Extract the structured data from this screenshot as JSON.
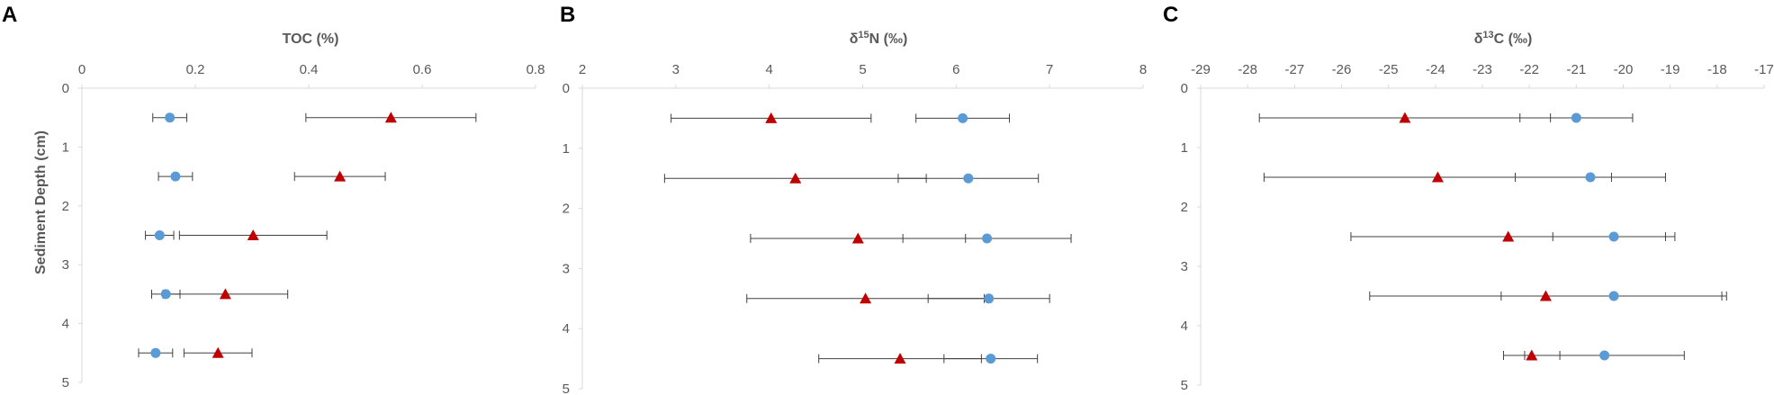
{
  "colors": {
    "series_circle": "#5b9bd5",
    "series_triangle": "#c00000",
    "error_bar": "#404040",
    "axis_text": "#595959"
  },
  "chart_data": [
    {
      "type": "scatter",
      "panel_label": "A",
      "title": "TOC (%)",
      "xlabel": "TOC (%)",
      "ylabel": "Sediment Depth (cm)",
      "x_axis_position": "top",
      "y_reversed": true,
      "xlim": [
        0,
        0.8
      ],
      "ylim": [
        0,
        5
      ],
      "xticks": [
        0,
        0.2,
        0.4,
        0.6,
        0.8
      ],
      "xtick_labels": [
        "0",
        "0.2",
        "0.4",
        "0.6",
        "0.8"
      ],
      "yticks": [
        0,
        1,
        2,
        3,
        4,
        5
      ],
      "ytick_labels": [
        "0",
        "1",
        "2",
        "3",
        "4",
        "5"
      ],
      "grid": false,
      "series": [
        {
          "marker": "circle",
          "color": "#5b9bd5",
          "points": [
            {
              "x": 0.155,
              "y": 0.5,
              "err": 0.03
            },
            {
              "x": 0.165,
              "y": 1.5,
              "err": 0.03
            },
            {
              "x": 0.137,
              "y": 2.5,
              "err": 0.025
            },
            {
              "x": 0.148,
              "y": 3.5,
              "err": 0.025
            },
            {
              "x": 0.13,
              "y": 4.5,
              "err": 0.03
            }
          ]
        },
        {
          "marker": "triangle",
          "color": "#c00000",
          "points": [
            {
              "x": 0.545,
              "y": 0.5,
              "err": 0.15
            },
            {
              "x": 0.455,
              "y": 1.5,
              "err": 0.08
            },
            {
              "x": 0.302,
              "y": 2.5,
              "err": 0.13
            },
            {
              "x": 0.253,
              "y": 3.5,
              "err": 0.11
            },
            {
              "x": 0.24,
              "y": 4.5,
              "err": 0.06
            }
          ]
        }
      ]
    },
    {
      "type": "scatter",
      "panel_label": "B",
      "title": "δ15N (‰)",
      "title_parts": {
        "prefix": "δ",
        "sup": "15",
        "suffix": "N (‰)"
      },
      "x_axis_position": "top",
      "y_reversed": true,
      "xlim": [
        2,
        8
      ],
      "ylim": [
        0,
        5
      ],
      "xticks": [
        2,
        3,
        4,
        5,
        6,
        7,
        8
      ],
      "xtick_labels": [
        "2",
        "3",
        "4",
        "5",
        "6",
        "7",
        "8"
      ],
      "yticks": [
        0,
        1,
        2,
        3,
        4,
        5
      ],
      "ytick_labels": [
        "0",
        "1",
        "2",
        "3",
        "4",
        "5"
      ],
      "grid": false,
      "series": [
        {
          "marker": "circle",
          "color": "#5b9bd5",
          "points": [
            {
              "x": 6.07,
              "y": 0.5,
              "err": 0.5
            },
            {
              "x": 6.13,
              "y": 1.5,
              "err": 0.75
            },
            {
              "x": 6.33,
              "y": 2.5,
              "err": 0.9
            },
            {
              "x": 6.35,
              "y": 3.5,
              "err": 0.65
            },
            {
              "x": 6.37,
              "y": 4.5,
              "err": 0.5
            }
          ]
        },
        {
          "marker": "triangle",
          "color": "#c00000",
          "points": [
            {
              "x": 4.02,
              "y": 0.5,
              "err": 1.07
            },
            {
              "x": 4.28,
              "y": 1.5,
              "err": 1.4
            },
            {
              "x": 4.95,
              "y": 2.5,
              "err": 1.15
            },
            {
              "x": 5.03,
              "y": 3.5,
              "err": 1.27
            },
            {
              "x": 5.4,
              "y": 4.5,
              "err": 0.87
            }
          ]
        }
      ]
    },
    {
      "type": "scatter",
      "panel_label": "C",
      "title": "δ13C (‰)",
      "title_parts": {
        "prefix": "δ",
        "sup": "13",
        "suffix": "C (‰)"
      },
      "x_axis_position": "top",
      "y_reversed": true,
      "xlim": [
        -29,
        -17
      ],
      "ylim": [
        0,
        5
      ],
      "xticks": [
        -29,
        -28,
        -27,
        -26,
        -25,
        -24,
        -23,
        -22,
        -21,
        -20,
        -19,
        -18,
        -17
      ],
      "xtick_labels": [
        "-29",
        "-28",
        "-27",
        "-26",
        "-25",
        "-24",
        "-23",
        "-22",
        "-21",
        "-20",
        "-19",
        "-18",
        "-17"
      ],
      "yticks": [
        0,
        1,
        2,
        3,
        4,
        5
      ],
      "ytick_labels": [
        "0",
        "1",
        "2",
        "3",
        "4",
        "5"
      ],
      "grid": false,
      "series": [
        {
          "marker": "circle",
          "color": "#5b9bd5",
          "points": [
            {
              "x": -21.0,
              "y": 0.5,
              "err": 1.2
            },
            {
              "x": -20.7,
              "y": 1.5,
              "err": 1.6
            },
            {
              "x": -20.2,
              "y": 2.5,
              "err": 1.3
            },
            {
              "x": -20.2,
              "y": 3.5,
              "err": 2.4
            },
            {
              "x": -20.4,
              "y": 4.5,
              "err": 1.7
            }
          ]
        },
        {
          "marker": "triangle",
          "color": "#c00000",
          "points": [
            {
              "x": -24.65,
              "y": 0.5,
              "err": 3.1
            },
            {
              "x": -23.95,
              "y": 1.5,
              "err": 3.7
            },
            {
              "x": -22.45,
              "y": 2.5,
              "err": 3.35
            },
            {
              "x": -21.65,
              "y": 3.5,
              "err": 3.75
            },
            {
              "x": -21.95,
              "y": 4.5,
              "err": 0.6
            }
          ]
        }
      ]
    }
  ]
}
